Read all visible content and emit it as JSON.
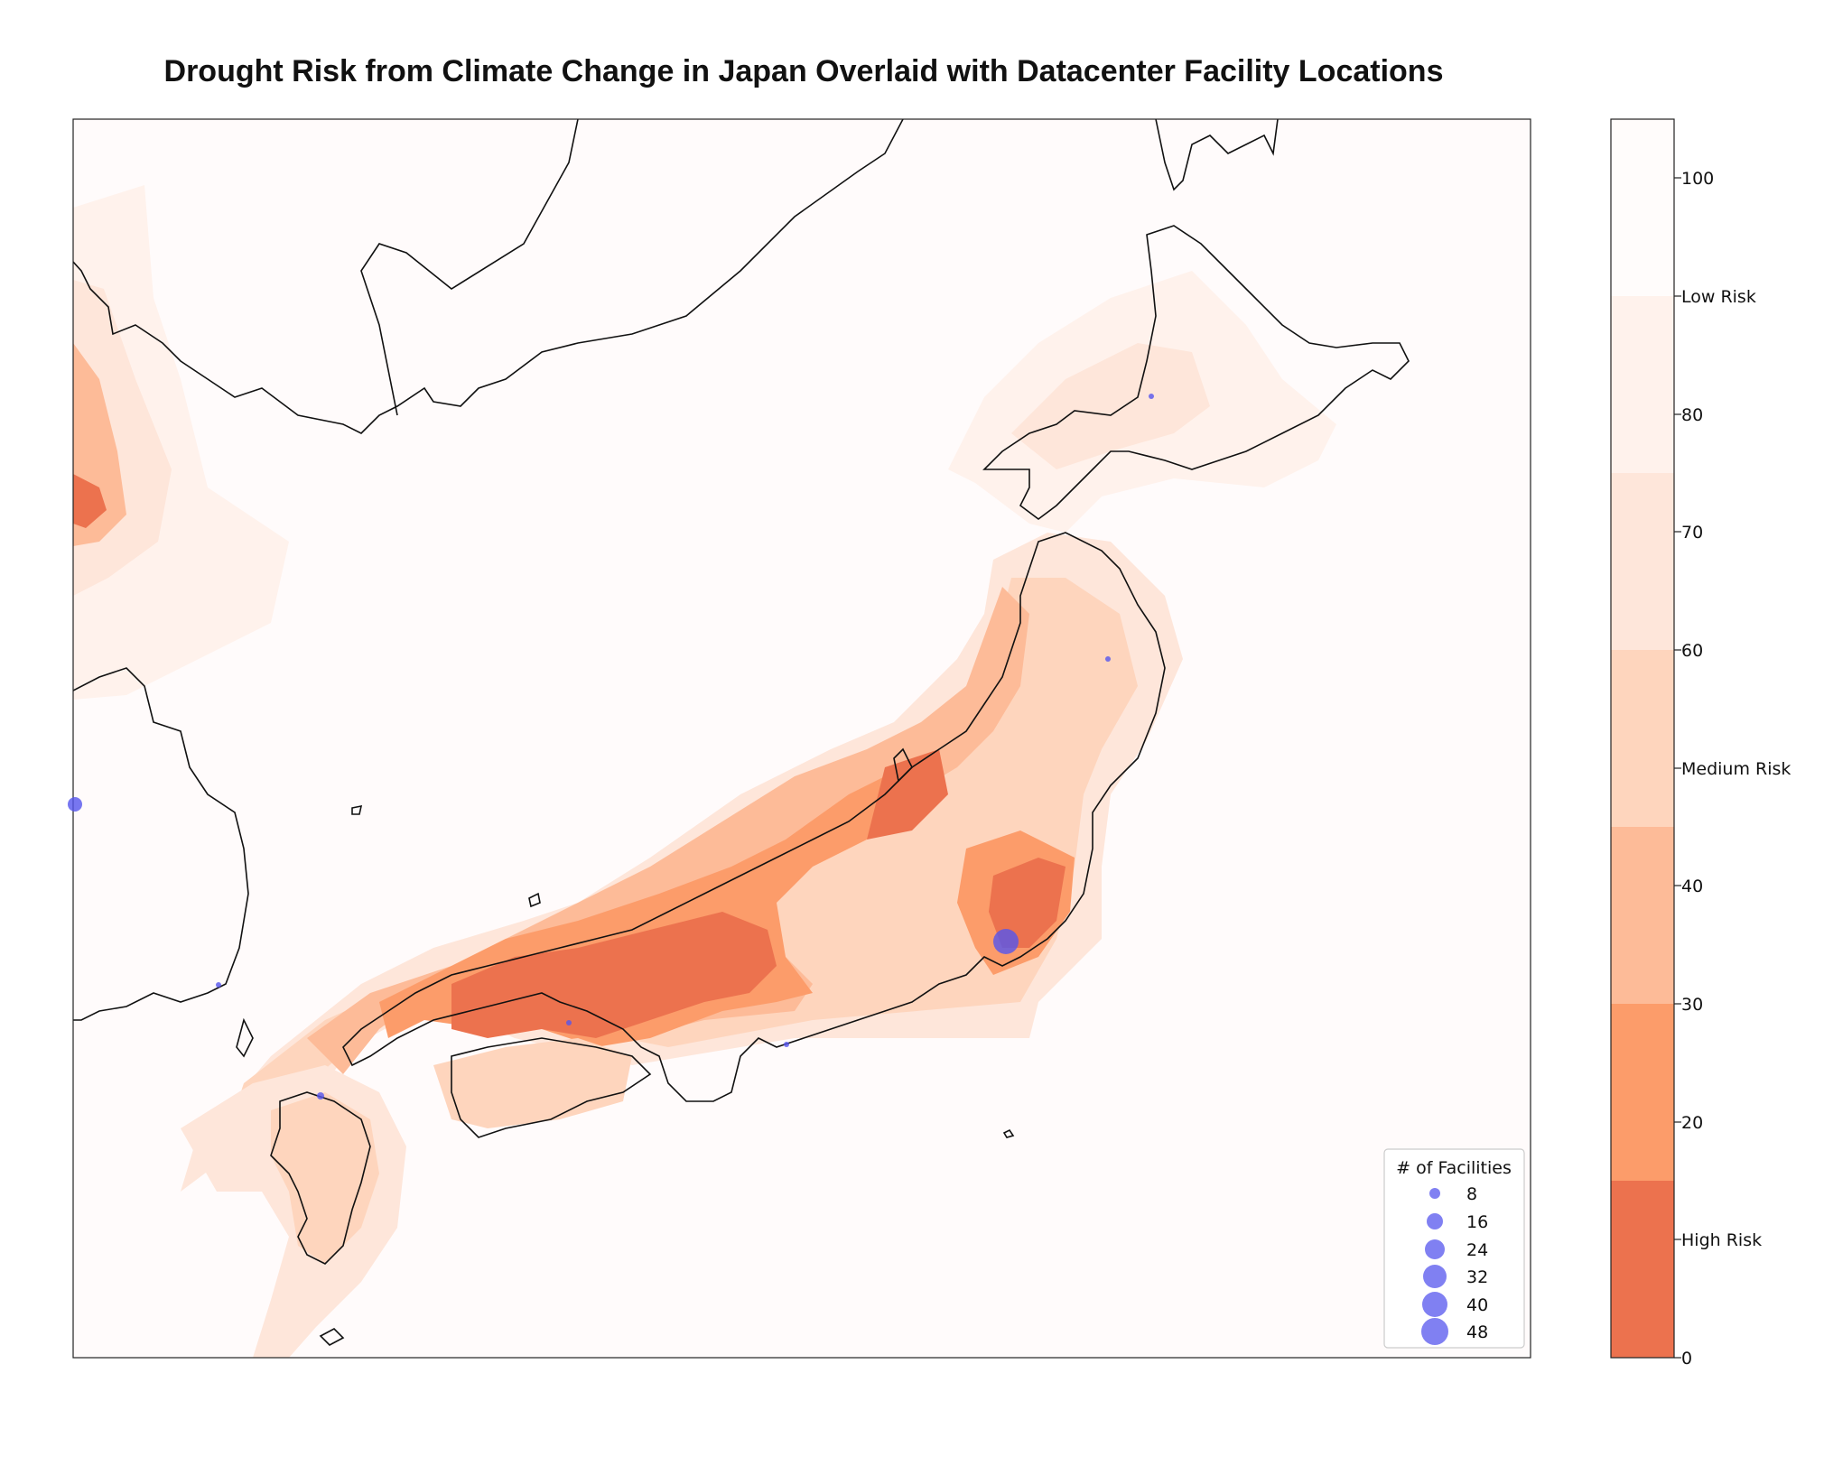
{
  "title": "Drought Risk from Climate Change in Japan Overlaid with Datacenter Facility Locations",
  "colorbar": {
    "ticks": [
      "0",
      "20",
      "30",
      "40",
      "60",
      "70",
      "80",
      "100"
    ],
    "risk_labels": [
      "High Risk",
      "Medium Risk",
      "Low Risk"
    ],
    "bands": [
      {
        "from": 0,
        "to": 15,
        "color": "#ec724e"
      },
      {
        "from": 15,
        "to": 30,
        "color": "#fc9c6a"
      },
      {
        "from": 30,
        "to": 45,
        "color": "#fdbb98"
      },
      {
        "from": 45,
        "to": 60,
        "color": "#fed5bd"
      },
      {
        "from": 60,
        "to": 75,
        "color": "#fee6da"
      },
      {
        "from": 75,
        "to": 90,
        "color": "#fff2ec"
      },
      {
        "from": 90,
        "to": 105,
        "color": "#fffcfb"
      }
    ]
  },
  "legend": {
    "title": "# of Facilities",
    "sizes": [
      "8",
      "16",
      "24",
      "32",
      "40",
      "48"
    ]
  },
  "colors": {
    "sea_background": "#fffbfb",
    "facility_marker": "#5555ee",
    "coastline": "#111111"
  }
}
